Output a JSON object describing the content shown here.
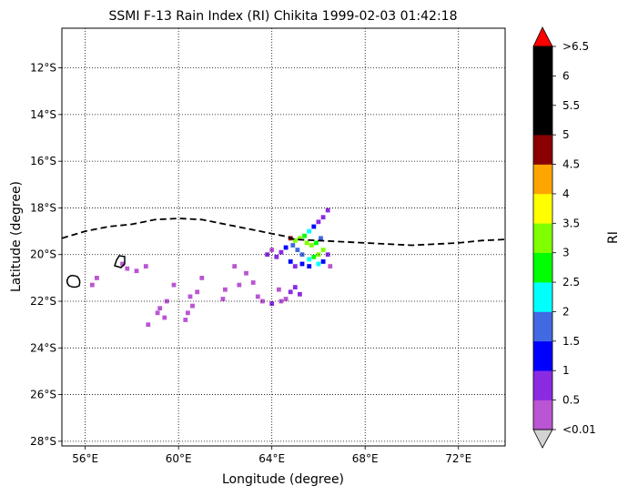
{
  "chart_data": {
    "type": "heatmap",
    "title": "SSMI F-13 Rain Index (RI) Chikita 1999-02-03 01:42:18",
    "xlabel": "Longitude (degree)",
    "ylabel": "Latitude (degree)",
    "xlim": [
      55.0,
      74.0
    ],
    "ylim": [
      -28.2,
      -10.3
    ],
    "x_ticks": [
      56,
      60,
      64,
      68,
      72
    ],
    "x_tick_labels": [
      "56°E",
      "60°E",
      "64°E",
      "68°E",
      "72°E"
    ],
    "y_ticks": [
      -12,
      -14,
      -16,
      -18,
      -20,
      -22,
      -24,
      -26,
      -28
    ],
    "y_tick_labels": [
      "12°S",
      "14°S",
      "16°S",
      "18°S",
      "20°S",
      "22°S",
      "24°S",
      "26°S",
      "28°S"
    ],
    "grid": true,
    "grid_style": "dotted",
    "swath_color": "#d3d3d3",
    "track_style": "dashed",
    "track": [
      [
        55.0,
        -19.3
      ],
      [
        56.0,
        -19.0
      ],
      [
        57.0,
        -18.8
      ],
      [
        58.0,
        -18.7
      ],
      [
        59.0,
        -18.5
      ],
      [
        60.0,
        -18.45
      ],
      [
        61.0,
        -18.5
      ],
      [
        62.0,
        -18.7
      ],
      [
        63.0,
        -18.9
      ],
      [
        64.0,
        -19.1
      ],
      [
        64.5,
        -19.2
      ],
      [
        65.0,
        -19.35
      ],
      [
        66.0,
        -19.4
      ],
      [
        67.0,
        -19.45
      ],
      [
        68.0,
        -19.5
      ],
      [
        69.0,
        -19.55
      ],
      [
        70.0,
        -19.6
      ],
      [
        71.0,
        -19.55
      ],
      [
        72.0,
        -19.5
      ],
      [
        73.0,
        -19.4
      ],
      [
        74.0,
        -19.35
      ]
    ],
    "rain_cells": [
      {
        "lon": 66.4,
        "lat": -18.1,
        "ri": 0.5
      },
      {
        "lon": 66.2,
        "lat": -18.4,
        "ri": 0.7
      },
      {
        "lon": 66.0,
        "lat": -18.6,
        "ri": 0.5
      },
      {
        "lon": 65.8,
        "lat": -18.8,
        "ri": 1.2
      },
      {
        "lon": 65.6,
        "lat": -19.0,
        "ri": 2.0
      },
      {
        "lon": 65.4,
        "lat": -19.2,
        "ri": 2.6
      },
      {
        "lon": 65.2,
        "lat": -19.3,
        "ri": 3.1
      },
      {
        "lon": 65.0,
        "lat": -19.4,
        "ri": 3.2
      },
      {
        "lon": 64.8,
        "lat": -19.3,
        "ri": 4.7
      },
      {
        "lon": 65.5,
        "lat": -19.5,
        "ri": 3.3
      },
      {
        "lon": 65.7,
        "lat": -19.6,
        "ri": 3.1
      },
      {
        "lon": 65.9,
        "lat": -19.5,
        "ri": 2.6
      },
      {
        "lon": 66.1,
        "lat": -19.3,
        "ri": 1.7
      },
      {
        "lon": 66.2,
        "lat": -19.8,
        "ri": 3.0
      },
      {
        "lon": 66.0,
        "lat": -20.0,
        "ri": 3.1
      },
      {
        "lon": 65.8,
        "lat": -20.1,
        "ri": 2.7
      },
      {
        "lon": 65.6,
        "lat": -20.2,
        "ri": 2.2
      },
      {
        "lon": 65.3,
        "lat": -20.0,
        "ri": 1.6
      },
      {
        "lon": 65.1,
        "lat": -19.8,
        "ri": 1.8
      },
      {
        "lon": 64.9,
        "lat": -19.6,
        "ri": 1.7
      },
      {
        "lon": 64.6,
        "lat": -19.7,
        "ri": 1.3
      },
      {
        "lon": 64.4,
        "lat": -19.9,
        "ri": 0.9
      },
      {
        "lon": 64.2,
        "lat": -20.1,
        "ri": 0.7
      },
      {
        "lon": 64.0,
        "lat": -19.8,
        "ri": 0.4
      },
      {
        "lon": 63.8,
        "lat": -20.0,
        "ri": 0.5
      },
      {
        "lon": 64.8,
        "lat": -20.3,
        "ri": 1.1
      },
      {
        "lon": 65.0,
        "lat": -20.5,
        "ri": 0.8
      },
      {
        "lon": 65.3,
        "lat": -20.4,
        "ri": 1.3
      },
      {
        "lon": 65.6,
        "lat": -20.5,
        "ri": 1.0
      },
      {
        "lon": 66.0,
        "lat": -20.4,
        "ri": 2.1
      },
      {
        "lon": 66.2,
        "lat": -20.3,
        "ri": 1.4
      },
      {
        "lon": 65.0,
        "lat": -21.4,
        "ri": 0.7
      },
      {
        "lon": 64.8,
        "lat": -21.6,
        "ri": 0.6
      },
      {
        "lon": 65.2,
        "lat": -21.7,
        "ri": 0.8
      },
      {
        "lon": 64.6,
        "lat": -21.9,
        "ri": 0.4
      },
      {
        "lon": 64.4,
        "lat": -22.0,
        "ri": 0.3
      },
      {
        "lon": 64.0,
        "lat": -22.1,
        "ri": 0.7
      },
      {
        "lon": 63.6,
        "lat": -22.0,
        "ri": 0.3
      },
      {
        "lon": 63.4,
        "lat": -21.8,
        "ri": 0.3
      },
      {
        "lon": 62.9,
        "lat": -20.8,
        "ri": 0.3
      },
      {
        "lon": 62.6,
        "lat": -21.3,
        "ri": 0.2
      },
      {
        "lon": 62.4,
        "lat": -20.5,
        "ri": 0.2
      },
      {
        "lon": 62.0,
        "lat": -21.5,
        "ri": 0.3
      },
      {
        "lon": 61.9,
        "lat": -21.9,
        "ri": 0.2
      },
      {
        "lon": 61.0,
        "lat": -21.0,
        "ri": 0.3
      },
      {
        "lon": 60.8,
        "lat": -21.6,
        "ri": 0.2
      },
      {
        "lon": 60.5,
        "lat": -21.8,
        "ri": 0.2
      },
      {
        "lon": 60.6,
        "lat": -22.2,
        "ri": 0.2
      },
      {
        "lon": 60.4,
        "lat": -22.5,
        "ri": 0.3
      },
      {
        "lon": 60.3,
        "lat": -22.8,
        "ri": 0.2
      },
      {
        "lon": 59.8,
        "lat": -21.3,
        "ri": 0.2
      },
      {
        "lon": 59.5,
        "lat": -22.0,
        "ri": 0.2
      },
      {
        "lon": 59.2,
        "lat": -22.3,
        "ri": 0.2
      },
      {
        "lon": 59.4,
        "lat": -22.7,
        "ri": 0.3
      },
      {
        "lon": 59.1,
        "lat": -22.5,
        "ri": 0.2
      },
      {
        "lon": 58.7,
        "lat": -23.0,
        "ri": 0.3
      },
      {
        "lon": 58.2,
        "lat": -20.7,
        "ri": 0.2
      },
      {
        "lon": 58.6,
        "lat": -20.5,
        "ri": 0.2
      },
      {
        "lon": 57.8,
        "lat": -20.6,
        "ri": 0.3
      },
      {
        "lon": 57.6,
        "lat": -20.4,
        "ri": 0.2
      },
      {
        "lon": 56.5,
        "lat": -21.0,
        "ri": 0.2
      },
      {
        "lon": 56.3,
        "lat": -21.3,
        "ri": 0.2
      },
      {
        "lon": 66.5,
        "lat": -20.5,
        "ri": 0.4
      },
      {
        "lon": 66.4,
        "lat": -20.0,
        "ri": 0.9
      },
      {
        "lon": 64.3,
        "lat": -21.5,
        "ri": 0.4
      },
      {
        "lon": 63.2,
        "lat": -21.2,
        "ri": 0.3
      }
    ],
    "colorbar": {
      "label": "RI",
      "tick_labels": [
        "<0.01",
        "0.5",
        "1",
        "1.5",
        "2",
        "2.5",
        "3",
        "3.5",
        "4",
        "4.5",
        "5",
        "5.5",
        "6",
        ">6.5"
      ],
      "colors": [
        "#ba55d3",
        "#8a2be2",
        "#0000ff",
        "#4169e1",
        "#00ffff",
        "#00ff00",
        "#7fff00",
        "#ffff00",
        "#ffa500",
        "#8b0000",
        "#000000",
        "#000000",
        "#000000"
      ],
      "under_color": "#d3d3d3",
      "over_color": "#ff0000",
      "boundaries": [
        0.01,
        0.5,
        1,
        1.5,
        2,
        2.5,
        3,
        3.5,
        4,
        4.5,
        5,
        5.5,
        6,
        6.5
      ]
    }
  }
}
